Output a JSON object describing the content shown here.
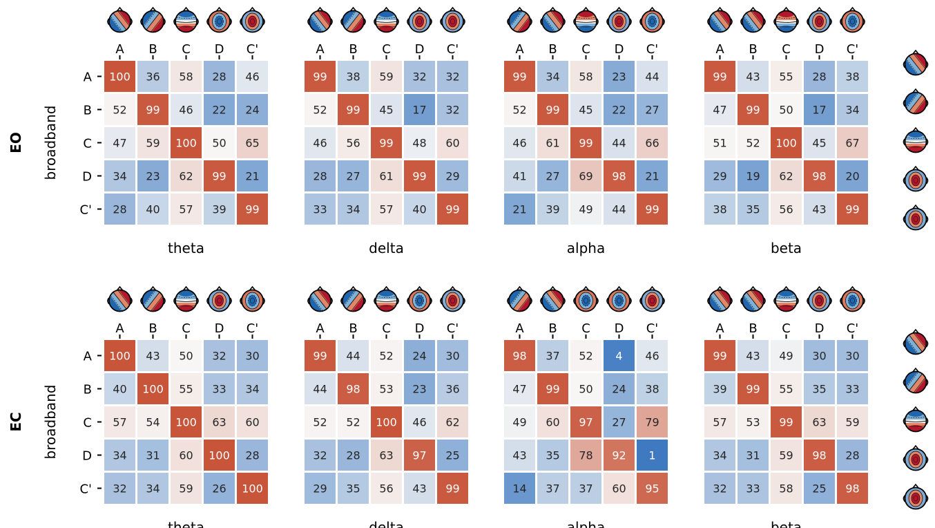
{
  "figure": {
    "rows": [
      "EO",
      "EC"
    ],
    "ylabel": "broadband",
    "row_labels": [
      "A",
      "B",
      "C",
      "D",
      "C'"
    ],
    "col_labels": [
      "A",
      "B",
      "C",
      "D",
      "C'"
    ],
    "bands": [
      "theta",
      "delta",
      "alpha",
      "beta"
    ],
    "colormap": {
      "low": "#3c78c0",
      "mid": "#f7f6f5",
      "high": "#c8553a",
      "vmin": 0,
      "vmax": 100
    }
  },
  "chart_data": [
    {
      "type": "heatmap",
      "row": "EO",
      "xlabel": "theta",
      "ylabel": "broadband",
      "categories_x": [
        "A",
        "B",
        "C",
        "D",
        "C'"
      ],
      "categories_y": [
        "A",
        "B",
        "C",
        "D",
        "C'"
      ],
      "values": [
        [
          100,
          36,
          58,
          28,
          46
        ],
        [
          52,
          99,
          46,
          22,
          24
        ],
        [
          47,
          59,
          100,
          50,
          65
        ],
        [
          34,
          23,
          62,
          99,
          21
        ],
        [
          28,
          40,
          57,
          39,
          99
        ]
      ]
    },
    {
      "type": "heatmap",
      "row": "EO",
      "xlabel": "delta",
      "ylabel": "",
      "categories_x": [
        "A",
        "B",
        "C",
        "D",
        "C'"
      ],
      "categories_y": [
        "A",
        "B",
        "C",
        "D",
        "C'"
      ],
      "values": [
        [
          99,
          38,
          59,
          32,
          32
        ],
        [
          52,
          99,
          45,
          17,
          32
        ],
        [
          46,
          56,
          99,
          48,
          60
        ],
        [
          28,
          27,
          61,
          99,
          29
        ],
        [
          33,
          34,
          57,
          40,
          99
        ]
      ]
    },
    {
      "type": "heatmap",
      "row": "EO",
      "xlabel": "alpha",
      "ylabel": "",
      "categories_x": [
        "A",
        "B",
        "C",
        "D",
        "C'"
      ],
      "categories_y": [
        "A",
        "B",
        "C",
        "D",
        "C'"
      ],
      "values": [
        [
          99,
          34,
          58,
          23,
          44
        ],
        [
          52,
          99,
          45,
          22,
          27
        ],
        [
          46,
          61,
          99,
          44,
          66
        ],
        [
          41,
          27,
          69,
          98,
          21
        ],
        [
          21,
          39,
          49,
          44,
          99
        ]
      ]
    },
    {
      "type": "heatmap",
      "row": "EO",
      "xlabel": "beta",
      "ylabel": "",
      "categories_x": [
        "A",
        "B",
        "C",
        "D",
        "C'"
      ],
      "categories_y": [
        "A",
        "B",
        "C",
        "D",
        "C'"
      ],
      "values": [
        [
          99,
          43,
          55,
          28,
          38
        ],
        [
          47,
          99,
          50,
          17,
          34
        ],
        [
          51,
          52,
          100,
          45,
          67
        ],
        [
          29,
          19,
          62,
          98,
          20
        ],
        [
          38,
          35,
          56,
          43,
          99
        ]
      ]
    },
    {
      "type": "heatmap",
      "row": "EC",
      "xlabel": "theta",
      "ylabel": "broadband",
      "categories_x": [
        "A",
        "B",
        "C",
        "D",
        "C'"
      ],
      "categories_y": [
        "A",
        "B",
        "C",
        "D",
        "C'"
      ],
      "values": [
        [
          100,
          43,
          50,
          32,
          30
        ],
        [
          40,
          100,
          55,
          33,
          34
        ],
        [
          57,
          54,
          100,
          63,
          60
        ],
        [
          34,
          31,
          60,
          100,
          28
        ],
        [
          32,
          34,
          59,
          26,
          100
        ]
      ]
    },
    {
      "type": "heatmap",
      "row": "EC",
      "xlabel": "delta",
      "ylabel": "",
      "categories_x": [
        "A",
        "B",
        "C",
        "D",
        "C'"
      ],
      "categories_y": [
        "A",
        "B",
        "C",
        "D",
        "C'"
      ],
      "values": [
        [
          99,
          44,
          52,
          24,
          30
        ],
        [
          44,
          98,
          53,
          23,
          36
        ],
        [
          52,
          52,
          100,
          46,
          62
        ],
        [
          32,
          28,
          63,
          97,
          25
        ],
        [
          29,
          35,
          56,
          43,
          99
        ]
      ]
    },
    {
      "type": "heatmap",
      "row": "EC",
      "xlabel": "alpha",
      "ylabel": "",
      "categories_x": [
        "A",
        "B",
        "C",
        "D",
        "C'"
      ],
      "categories_y": [
        "A",
        "B",
        "C",
        "D",
        "C'"
      ],
      "values": [
        [
          98,
          37,
          52,
          4,
          46
        ],
        [
          47,
          99,
          50,
          24,
          38
        ],
        [
          49,
          60,
          97,
          27,
          79
        ],
        [
          43,
          35,
          78,
          92,
          1
        ],
        [
          14,
          37,
          37,
          60,
          95
        ]
      ]
    },
    {
      "type": "heatmap",
      "row": "EC",
      "xlabel": "beta",
      "ylabel": "",
      "categories_x": [
        "A",
        "B",
        "C",
        "D",
        "C'"
      ],
      "categories_y": [
        "A",
        "B",
        "C",
        "D",
        "C'"
      ],
      "values": [
        [
          99,
          43,
          49,
          30,
          30
        ],
        [
          39,
          99,
          55,
          35,
          33
        ],
        [
          57,
          53,
          99,
          63,
          59
        ],
        [
          34,
          31,
          59,
          98,
          28
        ],
        [
          32,
          33,
          58,
          25,
          98
        ]
      ]
    }
  ],
  "topomaps": {
    "EO": {
      "theta": [
        "oblique-left",
        "oblique-right",
        "horizontal",
        "central-neg",
        "central-pos"
      ],
      "delta": [
        "oblique-left",
        "oblique-right",
        "horizontal",
        "central-pos",
        "central-pos"
      ],
      "alpha": [
        "oblique-right",
        "oblique-left",
        "frontal-pos",
        "central-pos",
        "central-neg"
      ],
      "beta": [
        "oblique-left",
        "oblique-left",
        "frontal-pos",
        "central-pos",
        "central-neg"
      ],
      "broadband": [
        "oblique-left",
        "oblique-right",
        "horizontal",
        "central-pos",
        "central-pos"
      ]
    },
    "EC": {
      "theta": [
        "oblique-left",
        "oblique-right",
        "horizontal",
        "central-pos",
        "central-neg"
      ],
      "delta": [
        "oblique-left",
        "oblique-right",
        "horizontal",
        "central-neg",
        "central-pos"
      ],
      "alpha": [
        "oblique-right",
        "oblique-left",
        "central-neg",
        "central-neg",
        "central-pos"
      ],
      "beta": [
        "oblique-left",
        "oblique-left",
        "horizontal",
        "central-pos",
        "central-neg"
      ],
      "broadband": [
        "oblique-left",
        "oblique-right",
        "horizontal",
        "central-pos",
        "central-pos"
      ]
    }
  }
}
